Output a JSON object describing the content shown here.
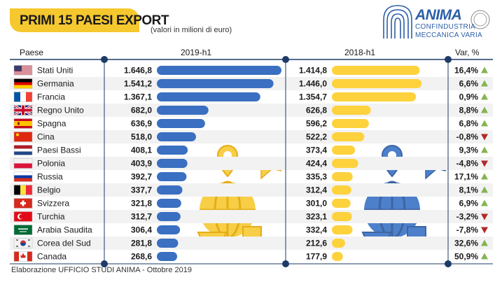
{
  "title": "PRIMI 15 PAESI EXPORT",
  "subtitle": "(valori in milioni di euro)",
  "brand": {
    "name": "ANIMA",
    "line1": "CONFINDUSTRIA",
    "line2": "MECCANICA VARIA"
  },
  "headers": {
    "country": "Paese",
    "col1": "2019-h1",
    "col2": "2018-h1",
    "var": "Var, %"
  },
  "footer": "Elaborazione UFFICIO STUDI ANIMA - Ottobre 2019",
  "colors": {
    "blue": "#3a6fc1",
    "yellow": "#fdd23c",
    "up": "#86b350",
    "down": "#b02a2a",
    "title_bg": "#f6c82f"
  },
  "chart_data": {
    "type": "bar",
    "categories": [
      "Stati Uniti",
      "Germania",
      "Francia",
      "Regno Unito",
      "Spagna",
      "Cina",
      "Paesi Bassi",
      "Polonia",
      "Russia",
      "Belgio",
      "Svizzera",
      "Turchia",
      "Arabia Saudita",
      "Corea del Sud",
      "Canada"
    ],
    "flags": [
      "us-flag-icon",
      "de-flag-icon",
      "fr-flag-icon",
      "gb-flag-icon",
      "es-flag-icon",
      "cn-flag-icon",
      "nl-flag-icon",
      "pl-flag-icon",
      "ru-flag-icon",
      "be-flag-icon",
      "ch-flag-icon",
      "tr-flag-icon",
      "sa-flag-icon",
      "kr-flag-icon",
      "ca-flag-icon"
    ],
    "series": [
      {
        "name": "2019-h1",
        "values": [
          1646.8,
          1541.2,
          1367.1,
          682.0,
          636.9,
          518.0,
          408.1,
          403.9,
          392.7,
          337.7,
          321.8,
          312.7,
          306.4,
          281.8,
          268.6
        ],
        "labels": [
          "1.646,8",
          "1.541,2",
          "1.367,1",
          "682,0",
          "636,9",
          "518,0",
          "408,1",
          "403,9",
          "392,7",
          "337,7",
          "321,8",
          "312,7",
          "306,4",
          "281,8",
          "268,6"
        ]
      },
      {
        "name": "2018-h1",
        "values": [
          1414.8,
          1446.0,
          1354.7,
          626.8,
          596.2,
          522.2,
          373.4,
          424.4,
          335.3,
          312.4,
          301.0,
          323.1,
          332.4,
          212.6,
          177.9
        ],
        "labels": [
          "1.414,8",
          "1.446,0",
          "1.354,7",
          "626,8",
          "596,2",
          "522,2",
          "373,4",
          "424,4",
          "335,3",
          "312,4",
          "301,0",
          "323,1",
          "332,4",
          "212,6",
          "177,9"
        ]
      }
    ],
    "variation": [
      "16,4%",
      "6,6%",
      "0,9%",
      "8,8%",
      "6,8%",
      "-0,8%",
      "9,3%",
      "-4,8%",
      "17,1%",
      "8,1%",
      "6,9%",
      "-3,2%",
      "-7,8%",
      "32,6%",
      "50,9%"
    ],
    "direction": [
      "up",
      "up",
      "up",
      "up",
      "up",
      "down",
      "up",
      "down",
      "up",
      "up",
      "up",
      "down",
      "down",
      "up",
      "up"
    ]
  }
}
